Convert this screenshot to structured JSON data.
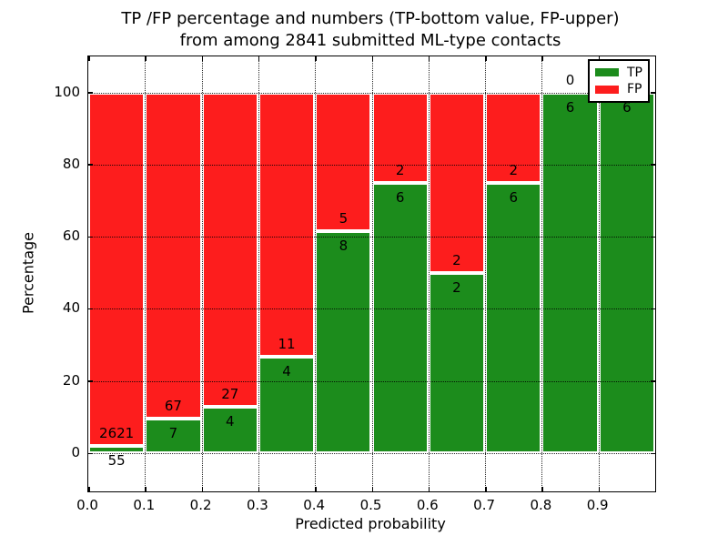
{
  "figure": {
    "title_line1": "TP /FP percentage and numbers (TP-bottom value, FP-upper)",
    "title_line2": "from among 2841 submitted ML-type contacts",
    "xlabel": "Predicted probability",
    "ylabel": "Percentage",
    "total_contacts": "2841"
  },
  "legend": {
    "position": "upper right",
    "items": [
      {
        "label": "TP",
        "color": "#1c8c1c"
      },
      {
        "label": "FP",
        "color": "#fd1d1d"
      }
    ]
  },
  "chart_data": {
    "type": "bar",
    "stacked": true,
    "normalized_to_percent": true,
    "title": "TP /FP percentage and numbers (TP-bottom value, FP-upper) from among 2841 submitted ML-type contacts",
    "xlabel": "Predicted probability",
    "ylabel": "Percentage",
    "grid": true,
    "grid_style": "dotted",
    "xlim": [
      0.0,
      1.0
    ],
    "ylim": [
      -11,
      110
    ],
    "bins": [
      "0.0-0.1",
      "0.1-0.2",
      "0.2-0.3",
      "0.3-0.4",
      "0.4-0.5",
      "0.5-0.6",
      "0.6-0.7",
      "0.7-0.8",
      "0.8-0.9",
      "0.9-1.0"
    ],
    "x_tick_labels": [
      "0.0",
      "0.1",
      "0.2",
      "0.3",
      "0.4",
      "0.5",
      "0.6",
      "0.7",
      "0.8",
      "0.9"
    ],
    "y_ticks": [
      0,
      20,
      40,
      60,
      80,
      100
    ],
    "y_tick_labels": [
      "0",
      "20",
      "40",
      "60",
      "80",
      "100"
    ],
    "series": [
      {
        "name": "TP",
        "color": "#1c8c1c",
        "values": [
          55,
          7,
          4,
          4,
          8,
          6,
          2,
          6,
          6,
          6
        ]
      },
      {
        "name": "FP",
        "color": "#fd1d1d",
        "values": [
          2621,
          67,
          27,
          11,
          5,
          2,
          2,
          2,
          0,
          0
        ]
      }
    ],
    "tp_percent": [
      2.1,
      9.5,
      12.9,
      26.7,
      61.5,
      75.0,
      50.0,
      75.0,
      100.0,
      100.0
    ],
    "bar_edge_color": "#ffffff",
    "note_fp0_label_hidden_behind_legend": "0"
  }
}
